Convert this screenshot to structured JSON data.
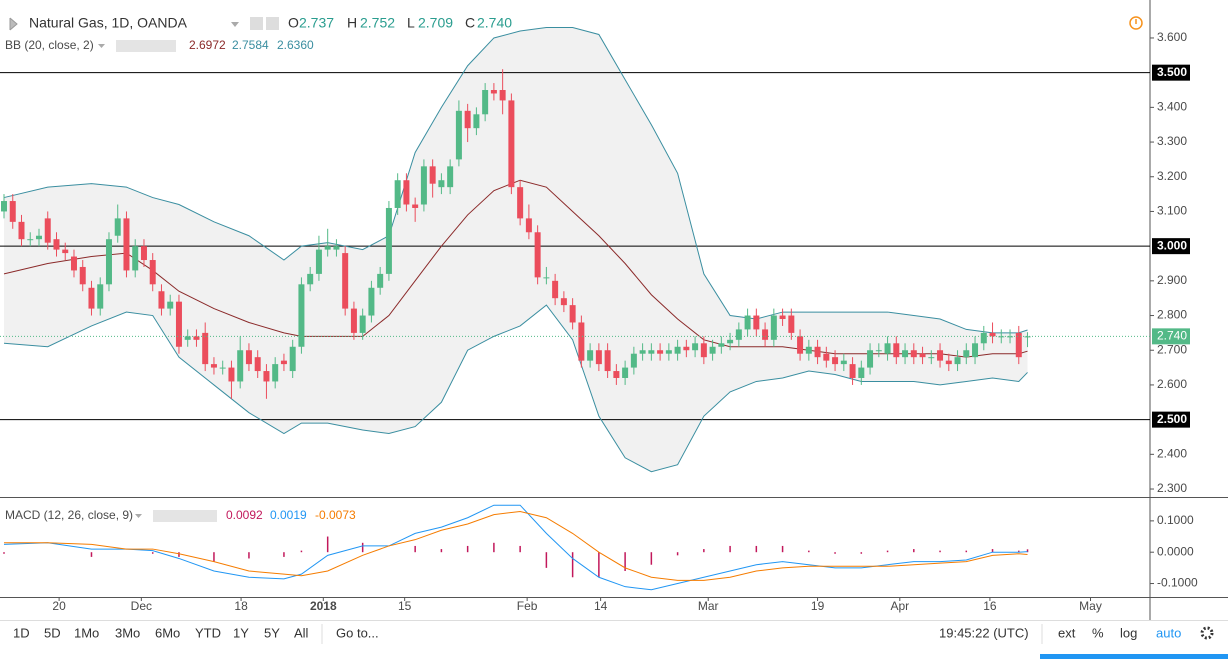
{
  "header": {
    "title": "Natural Gas, 1D, OANDA",
    "o_label": "O",
    "o": "2.737",
    "h_label": "H",
    "h": "2.752",
    "l_label": "L",
    "l": "2.709",
    "c_label": "C",
    "c": "2.740",
    "bb_label": "BB (20, close, 2)",
    "bb_mid": "2.6972",
    "bb_upper": "2.7584",
    "bb_lower": "2.6360",
    "macd_label": "MACD (12, 26, close, 9)",
    "macd_hist": "0.0092",
    "macd_line": "0.0019",
    "macd_signal": "-0.0073"
  },
  "toolbar": {
    "periods": [
      "1D",
      "5D",
      "1Mo",
      "3Mo",
      "6Mo",
      "YTD",
      "1Y",
      "5Y",
      "All"
    ],
    "goto": "Go to...",
    "time": "19:45:22 (UTC)",
    "options": [
      "ext",
      "%",
      "log",
      "auto"
    ]
  },
  "chart_data": [
    {
      "type": "candlestick",
      "up_color": "#53b987",
      "down_color": "#eb4d5c",
      "xlim": [
        -0.457,
        131
      ],
      "ylim": [
        2.277,
        3.695
      ],
      "xticks": [
        {
          "value": 6.3,
          "label": "20"
        },
        {
          "value": 15.7,
          "label": "Dec"
        },
        {
          "value": 27.1,
          "label": "18"
        },
        {
          "value": 36.5,
          "label": "2018"
        },
        {
          "value": 45.8,
          "label": "15"
        },
        {
          "value": 59.8,
          "label": "Feb"
        },
        {
          "value": 68.2,
          "label": "14"
        },
        {
          "value": 80.5,
          "label": "Mar"
        },
        {
          "value": 93,
          "label": "19"
        },
        {
          "value": 102.4,
          "label": "Apr"
        },
        {
          "value": 112.7,
          "label": "16"
        },
        {
          "value": 124.2,
          "label": "May"
        }
      ],
      "yticks": [
        {
          "value": 3.6,
          "label": "3.600"
        },
        {
          "value": 3.4,
          "label": "3.400"
        },
        {
          "value": 3.3,
          "label": "3.300"
        },
        {
          "value": 3.2,
          "label": "3.200"
        },
        {
          "value": 3.1,
          "label": "3.100"
        },
        {
          "value": 2.9,
          "label": "2.900"
        },
        {
          "value": 2.8,
          "label": "2.800"
        },
        {
          "value": 2.7,
          "label": "2.700"
        },
        {
          "value": 2.6,
          "label": "2.600"
        },
        {
          "value": 2.4,
          "label": "2.400"
        },
        {
          "value": 2.3,
          "label": "2.300"
        }
      ],
      "hlines": [
        {
          "value": 3.5,
          "label": "3.500"
        },
        {
          "value": 3.0,
          "label": "3.000"
        },
        {
          "value": 2.5,
          "label": "2.500"
        }
      ],
      "last_price": {
        "value": 2.74,
        "label": "2.740"
      },
      "open": [
        3.1,
        3.13,
        3.07,
        3.02,
        3.02,
        3.08,
        3.02,
        2.99,
        2.97,
        2.94,
        2.88,
        2.82,
        2.89,
        3.03,
        3.08,
        2.93,
        3.0,
        2.96,
        2.87,
        2.82,
        2.84,
        2.73,
        2.74,
        2.75,
        2.66,
        2.65,
        2.65,
        2.61,
        2.7,
        2.68,
        2.64,
        2.61,
        2.67,
        2.64,
        2.71,
        2.89,
        2.92,
        2.99,
        2.99,
        2.98,
        2.82,
        2.75,
        2.8,
        2.88,
        2.92,
        3.11,
        3.19,
        3.12,
        3.12,
        3.23,
        3.17,
        3.17,
        3.25,
        3.39,
        3.34,
        3.38,
        3.45,
        3.45,
        3.42,
        3.17,
        3.08,
        3.04,
        2.91,
        2.9,
        2.85,
        2.83,
        2.78,
        2.67,
        2.7,
        2.7,
        2.64,
        2.62,
        2.65,
        2.69,
        2.69,
        2.7,
        2.69,
        2.69,
        2.71,
        2.7,
        2.72,
        2.69,
        2.71,
        2.72,
        2.73,
        2.76,
        2.8,
        2.76,
        2.73,
        2.8,
        2.8,
        2.74,
        2.69,
        2.71,
        2.69,
        2.68,
        2.66,
        2.66,
        2.62,
        2.65,
        2.7,
        2.69,
        2.72,
        2.68,
        2.7,
        2.69,
        2.68,
        2.7,
        2.67,
        2.66,
        2.68,
        2.68,
        2.72,
        2.75,
        2.74,
        2.74,
        2.75,
        2.737
      ],
      "high": [
        3.15,
        3.15,
        3.09,
        3.04,
        3.05,
        3.1,
        3.04,
        3.01,
        2.99,
        2.96,
        2.9,
        2.91,
        3.04,
        3.12,
        3.1,
        3.02,
        3.02,
        2.98,
        2.89,
        2.86,
        2.86,
        2.76,
        2.76,
        2.78,
        2.68,
        2.67,
        2.67,
        2.74,
        2.72,
        2.7,
        2.66,
        2.68,
        2.69,
        2.73,
        2.91,
        2.94,
        3.03,
        3.05,
        3.02,
        3.0,
        2.84,
        2.82,
        2.9,
        2.94,
        3.13,
        3.21,
        3.21,
        3.14,
        3.25,
        3.25,
        3.21,
        3.25,
        3.42,
        3.41,
        3.4,
        3.47,
        3.47,
        3.51,
        3.44,
        3.19,
        3.12,
        3.06,
        2.94,
        2.92,
        2.87,
        2.85,
        2.8,
        2.72,
        2.72,
        2.72,
        2.66,
        2.67,
        2.71,
        2.72,
        2.72,
        2.72,
        2.72,
        2.73,
        2.73,
        2.74,
        2.74,
        2.73,
        2.74,
        2.75,
        2.78,
        2.82,
        2.82,
        2.78,
        2.82,
        2.82,
        2.82,
        2.76,
        2.73,
        2.73,
        2.71,
        2.7,
        2.69,
        2.68,
        2.67,
        2.72,
        2.72,
        2.74,
        2.74,
        2.72,
        2.72,
        2.71,
        2.7,
        2.72,
        2.69,
        2.7,
        2.72,
        2.74,
        2.77,
        2.78,
        2.76,
        2.76,
        2.77,
        2.752
      ],
      "low": [
        3.08,
        3.05,
        3.0,
        3.0,
        3.0,
        2.99,
        2.97,
        2.96,
        2.91,
        2.87,
        2.8,
        2.8,
        2.87,
        3.01,
        2.91,
        2.91,
        2.94,
        2.87,
        2.8,
        2.8,
        2.69,
        2.71,
        2.71,
        2.64,
        2.63,
        2.63,
        2.56,
        2.59,
        2.64,
        2.62,
        2.56,
        2.59,
        2.64,
        2.62,
        2.69,
        2.87,
        2.9,
        2.97,
        2.97,
        2.8,
        2.73,
        2.73,
        2.78,
        2.86,
        2.9,
        3.09,
        3.1,
        3.07,
        3.1,
        3.14,
        3.15,
        3.15,
        3.23,
        3.3,
        3.32,
        3.36,
        3.42,
        3.38,
        3.15,
        3.06,
        3.02,
        2.89,
        2.89,
        2.83,
        2.81,
        2.76,
        2.65,
        2.65,
        2.64,
        2.62,
        2.6,
        2.6,
        2.63,
        2.67,
        2.67,
        2.67,
        2.67,
        2.67,
        2.68,
        2.68,
        2.66,
        2.67,
        2.69,
        2.7,
        2.71,
        2.74,
        2.74,
        2.71,
        2.71,
        2.77,
        2.73,
        2.67,
        2.67,
        2.66,
        2.65,
        2.64,
        2.64,
        2.6,
        2.6,
        2.63,
        2.68,
        2.67,
        2.66,
        2.66,
        2.66,
        2.66,
        2.66,
        2.65,
        2.64,
        2.64,
        2.66,
        2.66,
        2.7,
        2.72,
        2.72,
        2.72,
        2.66,
        2.709
      ],
      "close": [
        3.13,
        3.07,
        3.02,
        3.02,
        3.03,
        3.01,
        2.99,
        2.98,
        2.93,
        2.89,
        2.82,
        2.89,
        3.02,
        3.08,
        2.93,
        3.0,
        2.96,
        2.89,
        2.82,
        2.84,
        2.71,
        2.74,
        2.73,
        2.66,
        2.65,
        2.65,
        2.61,
        2.7,
        2.66,
        2.64,
        2.61,
        2.66,
        2.66,
        2.71,
        2.89,
        2.92,
        2.99,
        3.0,
        3.0,
        2.82,
        2.75,
        2.8,
        2.88,
        2.92,
        3.11,
        3.19,
        3.12,
        3.11,
        3.23,
        3.18,
        3.19,
        3.23,
        3.39,
        3.34,
        3.38,
        3.45,
        3.44,
        3.42,
        3.17,
        3.08,
        3.04,
        2.91,
        2.91,
        2.85,
        2.83,
        2.78,
        2.67,
        2.7,
        2.66,
        2.64,
        2.62,
        2.65,
        2.69,
        2.7,
        2.7,
        2.69,
        2.7,
        2.71,
        2.7,
        2.72,
        2.68,
        2.71,
        2.72,
        2.73,
        2.76,
        2.8,
        2.76,
        2.73,
        2.8,
        2.79,
        2.75,
        2.69,
        2.71,
        2.68,
        2.67,
        2.66,
        2.67,
        2.62,
        2.65,
        2.7,
        2.7,
        2.72,
        2.68,
        2.7,
        2.68,
        2.68,
        2.68,
        2.67,
        2.66,
        2.68,
        2.7,
        2.72,
        2.75,
        2.74,
        2.74,
        2.74,
        2.68,
        2.74
      ],
      "bands": {
        "x": [
          0,
          5,
          10,
          14,
          17,
          20,
          24,
          28,
          32,
          34,
          37,
          41,
          44,
          47,
          50,
          53,
          56,
          59,
          62,
          65,
          68,
          71,
          74,
          77,
          80,
          83,
          86,
          89,
          92,
          95,
          98,
          101,
          104,
          107,
          110,
          113,
          116,
          117
        ],
        "upper_color": "#3a8ea0",
        "middle_color": "#8b2a2a",
        "fill_color": "#eeeeee",
        "upper": [
          3.14,
          3.17,
          3.18,
          3.17,
          3.14,
          3.12,
          3.07,
          3.03,
          2.96,
          3.0,
          3.01,
          2.99,
          3.03,
          3.27,
          3.4,
          3.52,
          3.6,
          3.62,
          3.63,
          3.63,
          3.61,
          3.48,
          3.35,
          3.21,
          2.92,
          2.8,
          2.79,
          2.81,
          2.81,
          2.81,
          2.81,
          2.81,
          2.8,
          2.79,
          2.76,
          2.75,
          2.75,
          2.7584
        ],
        "middle": [
          2.92,
          2.95,
          2.97,
          2.98,
          2.93,
          2.87,
          2.82,
          2.78,
          2.75,
          2.74,
          2.74,
          2.74,
          2.8,
          2.9,
          3.0,
          3.09,
          3.16,
          3.19,
          3.17,
          3.1,
          3.03,
          2.95,
          2.86,
          2.79,
          2.73,
          2.71,
          2.71,
          2.71,
          2.7,
          2.69,
          2.69,
          2.69,
          2.69,
          2.69,
          2.68,
          2.69,
          2.69,
          2.6972
        ],
        "lower": [
          2.72,
          2.71,
          2.77,
          2.81,
          2.8,
          2.68,
          2.6,
          2.52,
          2.46,
          2.49,
          2.49,
          2.47,
          2.46,
          2.48,
          2.55,
          2.7,
          2.74,
          2.77,
          2.83,
          2.73,
          2.51,
          2.39,
          2.35,
          2.37,
          2.51,
          2.58,
          2.61,
          2.62,
          2.64,
          2.63,
          2.61,
          2.61,
          2.61,
          2.6,
          2.61,
          2.62,
          2.61,
          2.636
        ]
      }
    },
    {
      "type": "macd",
      "xlim": [
        -0.457,
        131
      ],
      "ylim": [
        -0.143,
        0.173
      ],
      "yticks": [
        {
          "value": 0.1,
          "label": "0.1000"
        },
        {
          "value": 0,
          "label": "0.0000"
        },
        {
          "value": -0.1,
          "label": "-0.1000"
        }
      ],
      "x": [
        0,
        5,
        10,
        14,
        17,
        20,
        24,
        28,
        32,
        34,
        37,
        41,
        44,
        47,
        50,
        53,
        56,
        59,
        62,
        65,
        68,
        71,
        74,
        77,
        80,
        83,
        86,
        89,
        92,
        95,
        98,
        101,
        104,
        107,
        110,
        113,
        116,
        117
      ],
      "series": [
        {
          "name": "MACD",
          "color": "#2196f3",
          "values": [
            0.025,
            0.03,
            0.01,
            0.01,
            0.005,
            -0.02,
            -0.06,
            -0.08,
            -0.085,
            -0.07,
            -0.01,
            0.02,
            0.02,
            0.06,
            0.08,
            0.11,
            0.15,
            0.15,
            0.06,
            -0.02,
            -0.08,
            -0.11,
            -0.12,
            -0.1,
            -0.08,
            -0.06,
            -0.04,
            -0.03,
            -0.04,
            -0.05,
            -0.05,
            -0.04,
            -0.03,
            -0.03,
            -0.025,
            0.0,
            0.0,
            0.0019
          ]
        },
        {
          "name": "Signal",
          "color": "#f57c00",
          "values": [
            0.03,
            0.03,
            0.025,
            0.01,
            0.01,
            -0.005,
            -0.03,
            -0.06,
            -0.07,
            -0.075,
            -0.06,
            -0.01,
            0.02,
            0.04,
            0.07,
            0.09,
            0.12,
            0.13,
            0.11,
            0.06,
            0.0,
            -0.05,
            -0.08,
            -0.09,
            -0.09,
            -0.08,
            -0.06,
            -0.05,
            -0.045,
            -0.045,
            -0.045,
            -0.045,
            -0.04,
            -0.035,
            -0.03,
            -0.01,
            -0.005,
            -0.0073
          ]
        }
      ],
      "histogram": {
        "color": "#c2185b",
        "values": [
          -0.005,
          0,
          -0.015,
          0,
          -0.005,
          -0.015,
          -0.03,
          -0.02,
          -0.015,
          0.005,
          0.05,
          0.03,
          0,
          0.02,
          0.01,
          0.02,
          0.03,
          0.02,
          -0.05,
          -0.08,
          -0.08,
          -0.06,
          -0.04,
          -0.01,
          0.01,
          0.02,
          0.02,
          0.02,
          0.005,
          -0.005,
          -0.005,
          0.005,
          0.01,
          0.005,
          0.005,
          0.01,
          0.005,
          0.0092
        ]
      }
    }
  ]
}
